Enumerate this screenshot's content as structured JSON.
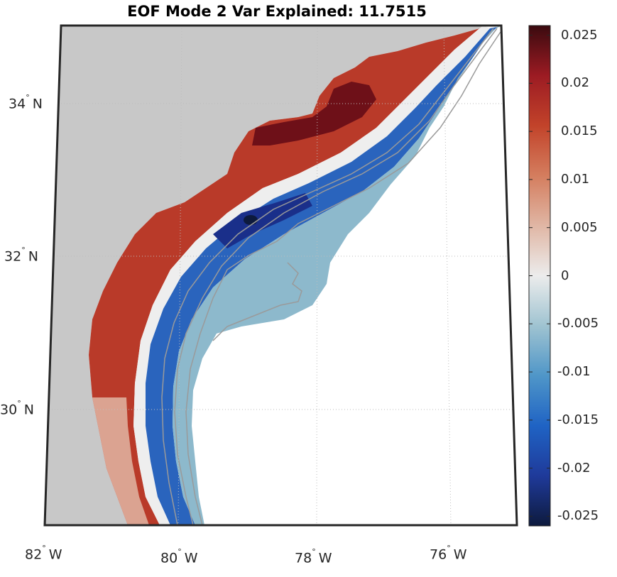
{
  "title": "EOF Mode 2 Var Explained: 11.7515",
  "latitude_labels": [
    {
      "deg": "34",
      "hemi": "N"
    },
    {
      "deg": "32",
      "hemi": "N"
    },
    {
      "deg": "30",
      "hemi": "N"
    }
  ],
  "longitude_labels": [
    {
      "deg": "82",
      "hemi": "W"
    },
    {
      "deg": "80",
      "hemi": "W"
    },
    {
      "deg": "78",
      "hemi": "W"
    },
    {
      "deg": "76",
      "hemi": "W"
    }
  ],
  "colorbar": {
    "ticks": [
      "0.025",
      "0.02",
      "0.015",
      "0.01",
      "0.005",
      "0",
      "-0.005",
      "-0.01",
      "-0.015",
      "-0.02",
      "-0.025"
    ],
    "range": [
      -0.026,
      0.026
    ],
    "colormap": [
      "#0d1a3d",
      "#1f3a9a",
      "#1f63c4",
      "#4f96c8",
      "#9fc3d1",
      "#ececec",
      "#e0b6a4",
      "#d47d5e",
      "#c2432a",
      "#9c1b23",
      "#3a0a0f"
    ]
  },
  "colors": {
    "land": "#c8c8c8",
    "ocean_nodata": "#ffffff",
    "frame": "#262626",
    "isobath": "#9a9a9a",
    "grid": "#bdbdbd"
  }
}
